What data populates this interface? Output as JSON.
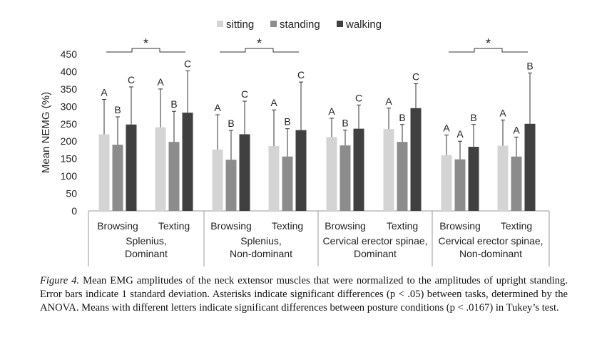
{
  "chart_data": {
    "type": "bar",
    "ylabel": "Mean NEMG (%)",
    "ylim": [
      0,
      450
    ],
    "yticks": [
      "0",
      "50",
      "100",
      "150",
      "200",
      "250",
      "300",
      "350",
      "400",
      "450"
    ],
    "legend_position": "top-center",
    "series": [
      {
        "name": "sitting",
        "color": "#d4d4d4"
      },
      {
        "name": "standing",
        "color": "#8c8c8c"
      },
      {
        "name": "walking",
        "color": "#404040"
      }
    ],
    "muscle_groups": [
      {
        "line1": "Splenius,",
        "line2": "Dominant",
        "sig_marker": "*",
        "tasks": [
          {
            "label": "Browsing",
            "values": [
              220,
              190,
              248
            ],
            "sd": [
              100,
              80,
              108
            ],
            "letters": [
              "A",
              "B",
              "C"
            ]
          },
          {
            "label": "Texting",
            "values": [
              240,
              198,
              282
            ],
            "sd": [
              110,
              88,
              120
            ],
            "letters": [
              "A",
              "B",
              "C"
            ]
          }
        ]
      },
      {
        "line1": "Splenius,",
        "line2": "Non-dominant",
        "sig_marker": "*",
        "tasks": [
          {
            "label": "Browsing",
            "values": [
              176,
              147,
              220
            ],
            "sd": [
              100,
              84,
              95
            ],
            "letters": [
              "A",
              "B",
              "C"
            ]
          },
          {
            "label": "Texting",
            "values": [
              186,
              156,
              232
            ],
            "sd": [
              104,
              80,
              138
            ],
            "letters": [
              "A",
              "B",
              "C"
            ]
          }
        ]
      },
      {
        "line1": "Cervical erector spinae,",
        "line2": "Dominant",
        "sig_marker": "",
        "tasks": [
          {
            "label": "Browsing",
            "values": [
              212,
              188,
              236
            ],
            "sd": [
              54,
              44,
              68
            ],
            "letters": [
              "A",
              "B",
              "C"
            ]
          },
          {
            "label": "Texting",
            "values": [
              235,
              198,
              295
            ],
            "sd": [
              60,
              50,
              70
            ],
            "letters": [
              "A",
              "B",
              "C"
            ]
          }
        ]
      },
      {
        "line1": "Cervical erector spinae,",
        "line2": "Non-dominant",
        "sig_marker": "*",
        "tasks": [
          {
            "label": "Browsing",
            "values": [
              160,
              148,
              184
            ],
            "sd": [
              58,
              52,
              64
            ],
            "letters": [
              "A",
              "A",
              "B"
            ]
          },
          {
            "label": "Texting",
            "values": [
              187,
              156,
              250
            ],
            "sd": [
              74,
              56,
              146
            ],
            "letters": [
              "A",
              "A",
              "B"
            ]
          }
        ]
      }
    ]
  },
  "caption": {
    "label": "Figure 4.",
    "text": "Mean EMG amplitudes of the neck extensor muscles that were normalized to the amplitudes of upright standing. Error bars indicate 1 standard deviation. Asterisks indicate significant differences (p < .05) between tasks, determined by the ANOVA. Means with different letters indicate significant differences between posture conditions (p < .0167) in Tukey’s test."
  }
}
